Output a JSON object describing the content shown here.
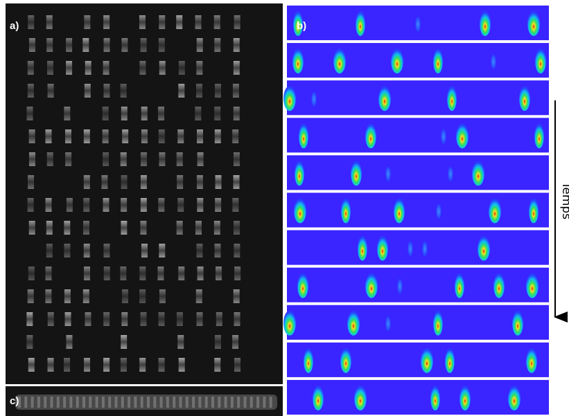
{
  "panels": {
    "a": {
      "label": "a)"
    },
    "b": {
      "label": "b)"
    },
    "c": {
      "label": "c)"
    }
  },
  "axis": {
    "label": "Temps"
  }
}
